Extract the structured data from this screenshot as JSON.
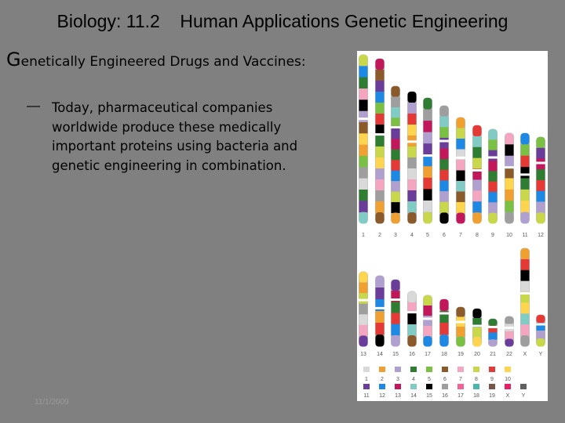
{
  "header": {
    "title": "Biology: 11.2    Human Applications Genetic Engineering",
    "subtitle": "Genetically Engineered Drugs and Vaccines:"
  },
  "bullet": {
    "lines": [
      "Today, pharmaceutical companies",
      "worldwide  produce these medically",
      "important proteins using bacteria and",
      "genetic engineering in combination."
    ]
  },
  "karyotype": {
    "row1": [
      "1",
      "2",
      "3",
      "4",
      "5",
      "6",
      "7",
      "8",
      "9",
      "10",
      "11",
      "12"
    ],
    "row2": [
      "13",
      "14",
      "15",
      "16",
      "17",
      "18",
      "19",
      "20",
      "21",
      "22",
      "X",
      "Y"
    ],
    "legend": {
      "row1": [
        "1",
        "2",
        "3",
        "4",
        "5",
        "6",
        "7",
        "8",
        "9",
        "10"
      ],
      "row2": [
        "11",
        "12",
        "13",
        "14",
        "15",
        "16",
        "17",
        "18",
        "19",
        "X",
        "Y"
      ]
    }
  },
  "footer": {
    "date": "11/1/2009"
  }
}
